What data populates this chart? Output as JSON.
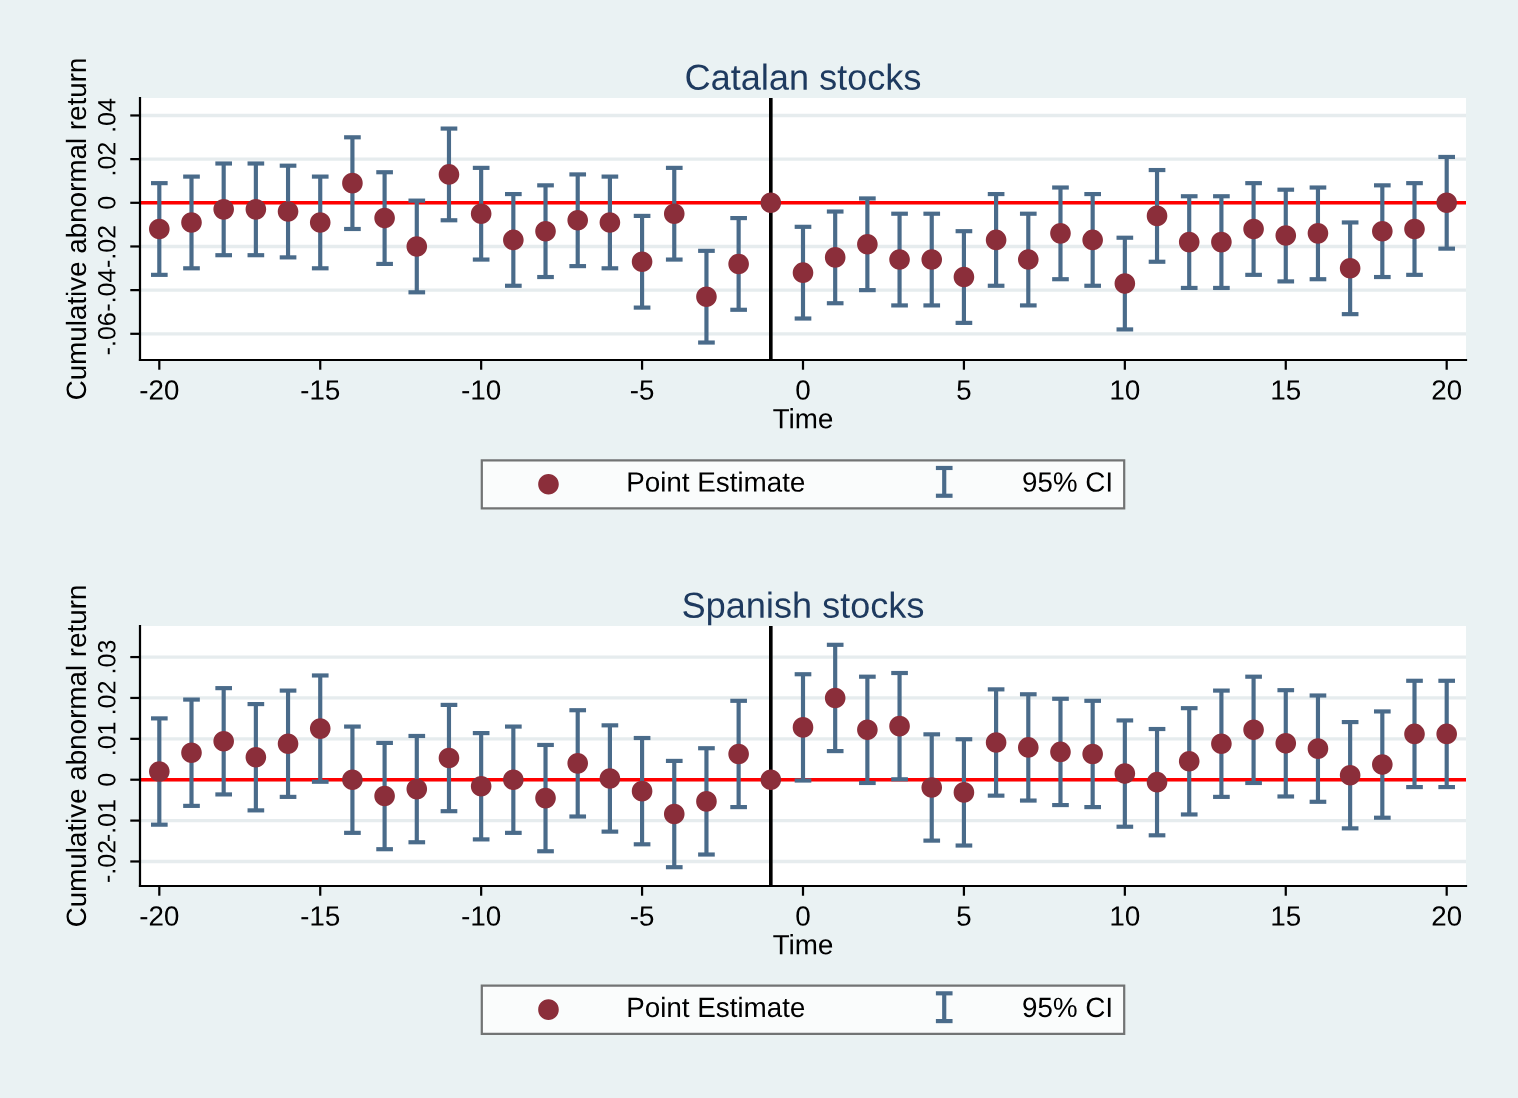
{
  "chart_data": [
    {
      "type": "scatter",
      "title": "Catalan stocks",
      "xlabel": "Time",
      "ylabel": "Cumulative abnormal return",
      "x": [
        -20,
        -19,
        -18,
        -17,
        -16,
        -15,
        -14,
        -13,
        -12,
        -11,
        -10,
        -9,
        -8,
        -7,
        -6,
        -5,
        -4,
        -3,
        -2,
        -1,
        0,
        1,
        2,
        3,
        4,
        5,
        6,
        7,
        8,
        9,
        10,
        11,
        12,
        13,
        14,
        15,
        16,
        17,
        18,
        19,
        20
      ],
      "series": [
        {
          "name": "Point Estimate",
          "color": "#8b2e3a",
          "values": [
            -0.012,
            -0.009,
            -0.003,
            -0.003,
            -0.004,
            -0.009,
            0.009,
            -0.007,
            -0.02,
            0.013,
            -0.005,
            -0.017,
            -0.013,
            -0.008,
            -0.009,
            -0.027,
            -0.005,
            -0.043,
            -0.028,
            0,
            -0.032,
            -0.025,
            -0.019,
            -0.026,
            -0.026,
            -0.034,
            -0.017,
            -0.026,
            -0.014,
            -0.017,
            -0.037,
            -0.006,
            -0.018,
            -0.018,
            -0.012,
            -0.015,
            -0.014,
            -0.03,
            -0.013,
            -0.012,
            0
          ],
          "errors": [
            0.021,
            0.021,
            0.021,
            0.021,
            0.021,
            0.021,
            0.021,
            0.021,
            0.021,
            0.021,
            0.021,
            0.021,
            0.021,
            0.021,
            0.021,
            0.021,
            0.021,
            0.021,
            0.021,
            null,
            0.021,
            0.021,
            0.021,
            0.021,
            0.021,
            0.021,
            0.021,
            0.021,
            0.021,
            0.021,
            0.021,
            0.021,
            0.021,
            0.021,
            0.021,
            0.021,
            0.021,
            0.021,
            0.021,
            0.021,
            0.021
          ]
        }
      ],
      "annotations": [
        "95% CI"
      ],
      "xlim": [
        -20.6,
        20.6
      ],
      "xticks": [
        -20,
        -15,
        -10,
        -5,
        0,
        5,
        10,
        15,
        20
      ],
      "ylim": [
        -0.072,
        0.048
      ],
      "yticks": [
        {
          "value": -0.06,
          "label": "-.06"
        },
        {
          "value": -0.04,
          "label": "-.04"
        },
        {
          "value": -0.02,
          "label": "-.02"
        },
        0,
        {
          "value": 0.02,
          "label": ".02"
        },
        {
          "value": 0.04,
          "label": ".04"
        }
      ],
      "ref_lines": [
        {
          "axis": "y",
          "value": 0,
          "color": "#ff0000"
        },
        {
          "axis": "x",
          "value": -1,
          "color": "#000000"
        }
      ],
      "grid": "y",
      "legend": "bottom",
      "marker": "circle"
    },
    {
      "type": "scatter",
      "title": "Spanish stocks",
      "xlabel": "Time",
      "ylabel": "Cumulative abnormal return",
      "x": [
        -20,
        -19,
        -18,
        -17,
        -16,
        -15,
        -14,
        -13,
        -12,
        -11,
        -10,
        -9,
        -8,
        -7,
        -6,
        -5,
        -4,
        -3,
        -2,
        -1,
        0,
        1,
        2,
        3,
        4,
        5,
        6,
        7,
        8,
        9,
        10,
        11,
        12,
        13,
        14,
        15,
        16,
        17,
        18,
        19,
        20
      ],
      "series": [
        {
          "name": "Point Estimate",
          "color": "#8b2e3a",
          "values": [
            0.002,
            0.0066,
            0.0094,
            0.0055,
            0.0088,
            0.0125,
            0,
            -0.004,
            -0.0023,
            0.0053,
            -0.0016,
            0,
            -0.0045,
            0.004,
            0.0003,
            -0.0028,
            -0.0084,
            -0.0053,
            0.0063,
            0,
            0.0128,
            0.02,
            0.0122,
            0.0131,
            -0.0019,
            -0.0031,
            0.0091,
            0.0079,
            0.0068,
            0.0063,
            0.0015,
            -0.0006,
            0.0045,
            0.0088,
            0.0122,
            0.0089,
            0.0076,
            0.0011,
            0.0037,
            0.0112,
            0.0112
          ],
          "errors": [
            0.013,
            0.013,
            0.013,
            0.013,
            0.013,
            0.013,
            0.013,
            0.013,
            0.013,
            0.013,
            0.013,
            0.013,
            0.013,
            0.013,
            0.013,
            0.013,
            0.013,
            0.013,
            0.013,
            null,
            0.013,
            0.013,
            0.013,
            0.013,
            0.013,
            0.013,
            0.013,
            0.013,
            0.013,
            0.013,
            0.013,
            0.013,
            0.013,
            0.013,
            0.013,
            0.013,
            0.013,
            0.013,
            0.013,
            0.013,
            0.013
          ]
        }
      ],
      "annotations": [
        "95% CI"
      ],
      "xlim": [
        -20.6,
        20.6
      ],
      "xticks": [
        -20,
        -15,
        -10,
        -5,
        0,
        5,
        10,
        15,
        20
      ],
      "ylim": [
        -0.026,
        0.0376
      ],
      "yticks": [
        {
          "value": -0.02,
          "label": "-.02"
        },
        {
          "value": -0.01,
          "label": "-.01"
        },
        0,
        {
          "value": 0.01,
          "label": ".01"
        },
        {
          "value": 0.02,
          "label": ".02"
        },
        {
          "value": 0.03,
          "label": ".03"
        }
      ],
      "ref_lines": [
        {
          "axis": "y",
          "value": 0,
          "color": "#ff0000"
        },
        {
          "axis": "x",
          "value": -1,
          "color": "#000000"
        }
      ],
      "grid": "y",
      "legend": "bottom",
      "marker": "circle"
    }
  ]
}
